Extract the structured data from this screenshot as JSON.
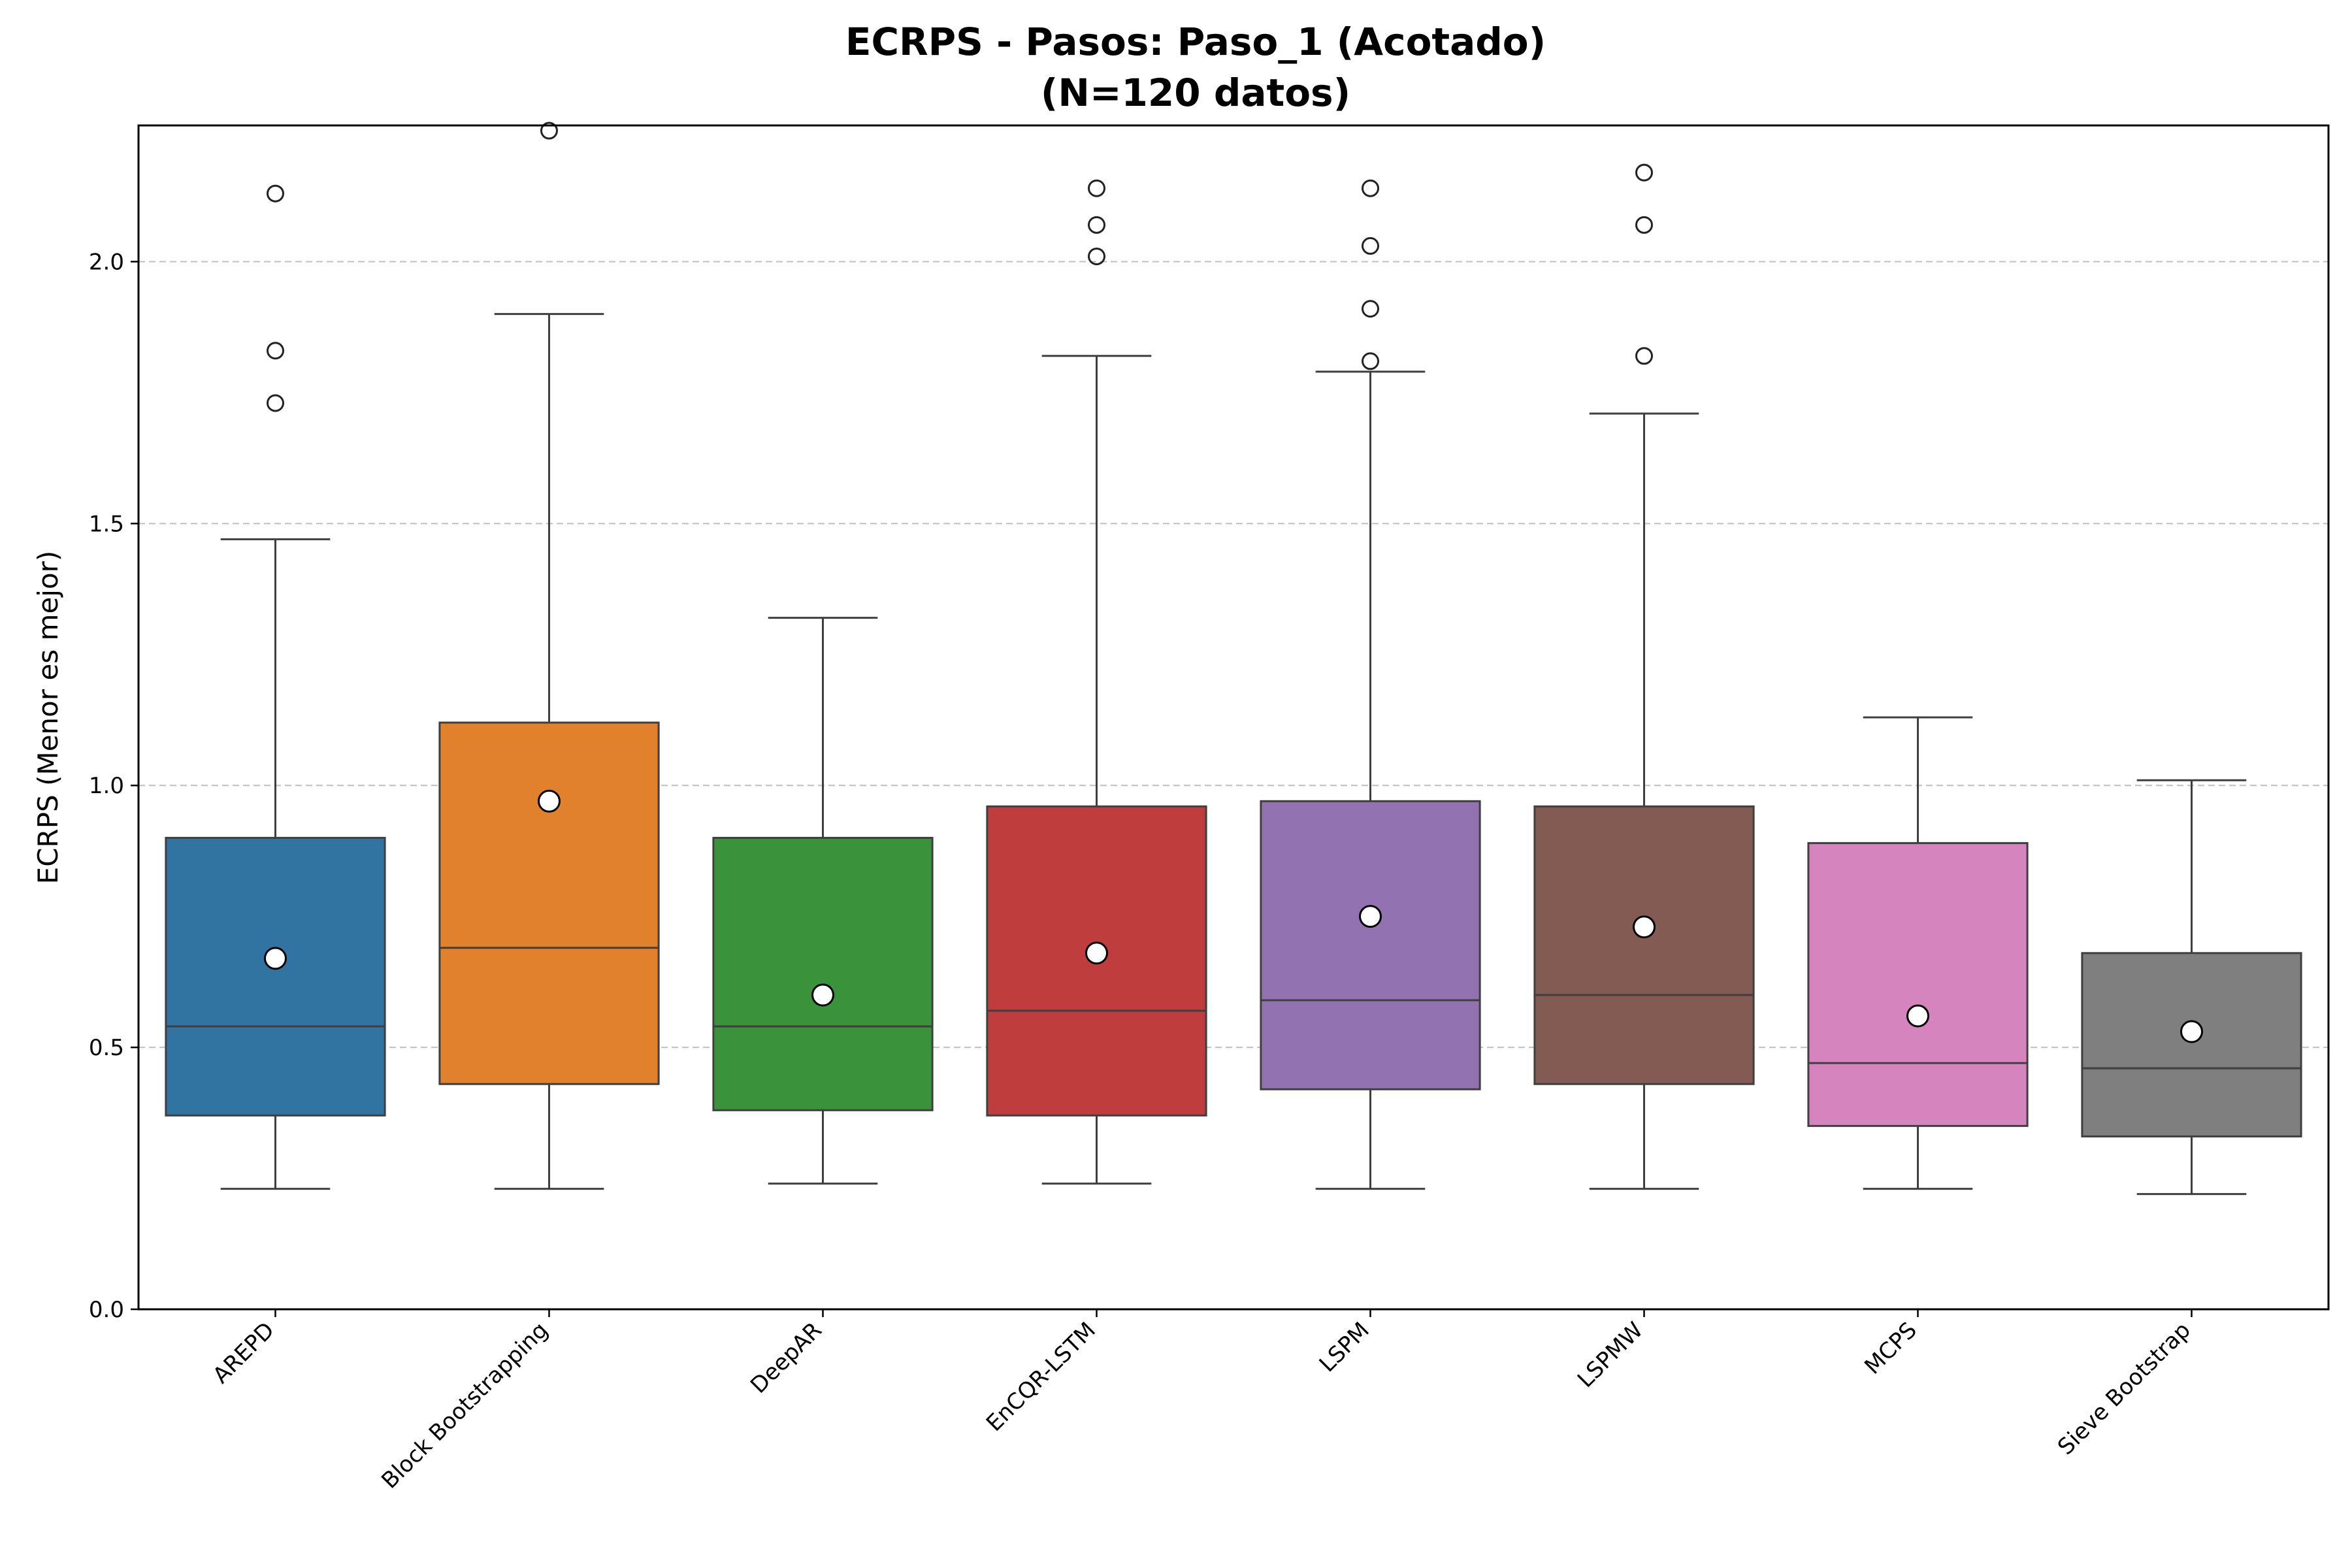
{
  "chart_data": {
    "type": "box",
    "title": "ECRPS - Pasos: Paso_1 (Acotado)",
    "subtitle": "(N=120 datos)",
    "xlabel": "",
    "ylabel": "ECRPS (Menor es mejor)",
    "ylim": [
      0,
      2.26
    ],
    "yticks": [
      "0.0",
      "0.5",
      "1.0",
      "1.5",
      "2.0"
    ],
    "grid": "horizontal dashed",
    "categories": [
      "AREPD",
      "Block Bootstrapping",
      "DeepAR",
      "EnCQR-LSTM",
      "LSPM",
      "LSPMW",
      "MCPS",
      "Sieve Bootstrap"
    ],
    "boxes": [
      {
        "name": "AREPD",
        "color": "#3274a1",
        "whisker_low": 0.23,
        "q1": 0.37,
        "median": 0.54,
        "q3": 0.9,
        "whisker_high": 1.47,
        "mean": 0.67,
        "outliers": [
          1.73,
          1.83,
          2.13
        ]
      },
      {
        "name": "Block Bootstrapping",
        "color": "#e1812c",
        "whisker_low": 0.23,
        "q1": 0.43,
        "median": 0.69,
        "q3": 1.12,
        "whisker_high": 1.9,
        "mean": 0.97,
        "outliers": [
          2.25
        ]
      },
      {
        "name": "DeepAR",
        "color": "#3a923a",
        "whisker_low": 0.24,
        "q1": 0.38,
        "median": 0.54,
        "q3": 0.9,
        "whisker_high": 1.32,
        "mean": 0.6,
        "outliers": []
      },
      {
        "name": "EnCQR-LSTM",
        "color": "#c03d3e",
        "whisker_low": 0.24,
        "q1": 0.37,
        "median": 0.57,
        "q3": 0.96,
        "whisker_high": 1.82,
        "mean": 0.68,
        "outliers": [
          2.01,
          2.07,
          2.14
        ]
      },
      {
        "name": "LSPM",
        "color": "#9372b2",
        "whisker_low": 0.23,
        "q1": 0.42,
        "median": 0.59,
        "q3": 0.97,
        "whisker_high": 1.79,
        "mean": 0.75,
        "outliers": [
          1.81,
          1.91,
          2.03,
          2.14
        ]
      },
      {
        "name": "LSPMW",
        "color": "#845b53",
        "whisker_low": 0.23,
        "q1": 0.43,
        "median": 0.6,
        "q3": 0.96,
        "whisker_high": 1.71,
        "mean": 0.73,
        "outliers": [
          1.82,
          2.07,
          2.17
        ]
      },
      {
        "name": "MCPS",
        "color": "#d684bd",
        "whisker_low": 0.23,
        "q1": 0.35,
        "median": 0.47,
        "q3": 0.89,
        "whisker_high": 1.13,
        "mean": 0.56,
        "outliers": []
      },
      {
        "name": "Sieve Bootstrap",
        "color": "#7f7f7f",
        "whisker_low": 0.22,
        "q1": 0.33,
        "median": 0.46,
        "q3": 0.68,
        "whisker_high": 1.01,
        "mean": 0.53,
        "outliers": []
      }
    ]
  }
}
